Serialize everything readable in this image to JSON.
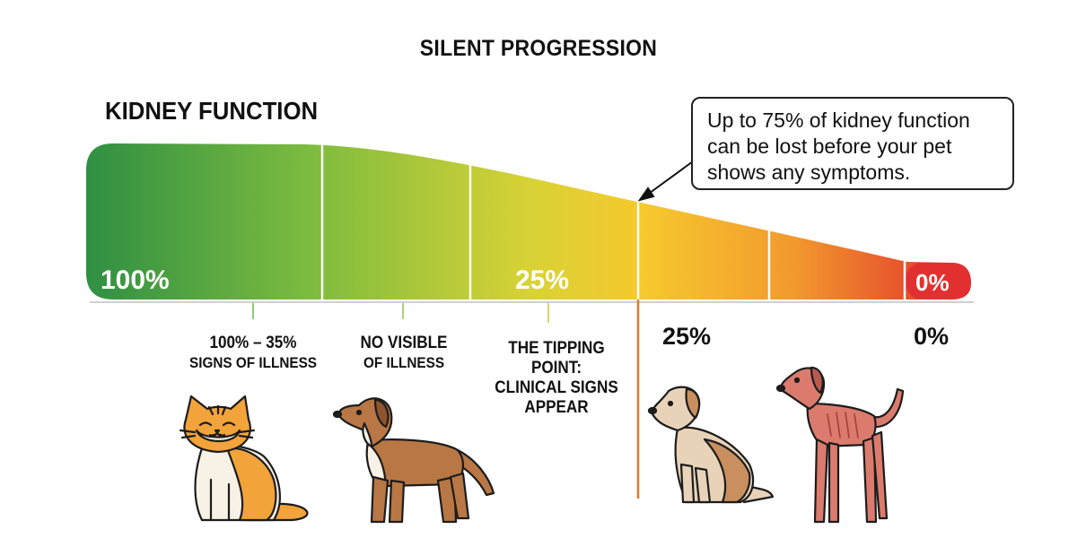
{
  "title": "SILENT PROGRESSION",
  "subtitle": "KIDNEY FUNCTION",
  "callout": {
    "text": "Up to 75% of kidney function can be lost before your pet shows any symptoms."
  },
  "bar_labels": {
    "start": "100%",
    "mid": "25%",
    "end": "0%"
  },
  "stages": [
    {
      "line1": "100% – 35%",
      "line2": "SIGNS OF ILLNESS"
    },
    {
      "line1": "NO VISIBLE",
      "line2": "OF ILLNESS"
    },
    {
      "line1": "THE TIPPING POINT:",
      "line2": "CLINICAL SIGNS APPEAR"
    }
  ],
  "below_labels": {
    "left": "25%",
    "right": "0%"
  },
  "illustrations": [
    "cat-icon",
    "healthy-dog-icon",
    "sitting-dog-icon",
    "thin-dog-icon"
  ],
  "colors": {
    "healthy": "#2f9a45",
    "mid": "#f2cf2f",
    "critical": "#e02b2b",
    "marker": "#e07a2a"
  }
}
